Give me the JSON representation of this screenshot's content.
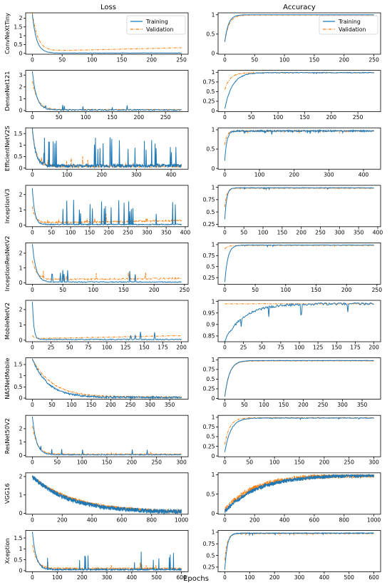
{
  "figure": {
    "col_titles": [
      "Loss",
      "Accuracy"
    ],
    "xlabel": "Epochs"
  },
  "colors": {
    "training": "#1f77b4",
    "validation": "#ff7f0e"
  },
  "legend": {
    "training": "Training",
    "validation": "Validation",
    "location": "top-right",
    "shown_on_row": 0
  },
  "chart_data": [
    {
      "type": "line",
      "model": "ConvNeXtTiny",
      "epochs": 250,
      "loss": {
        "xticks": [
          0,
          50,
          100,
          150,
          200,
          250
        ],
        "yticks": [
          0.0,
          0.5,
          1.0,
          1.5,
          2.0
        ],
        "ylim": [
          -0.05,
          2.3
        ],
        "training": {
          "start": 2.2,
          "floor": 0.02,
          "decay": 7,
          "noise": 0.01,
          "spikes": 0,
          "spike_amp": 0,
          "drift": 0
        },
        "validation": {
          "start": 2.3,
          "floor": 0.12,
          "decay": 9,
          "noise": 0.01,
          "spikes": 0,
          "spike_amp": 0,
          "drift": 0.2
        }
      },
      "accuracy": {
        "xticks": [
          0,
          50,
          100,
          150,
          200,
          250
        ],
        "yticks": [
          0.0,
          0.5,
          1.0
        ],
        "ylim": [
          -0.02,
          1.05
        ],
        "training": {
          "start": 0.3,
          "ceil": 1.0,
          "rise": 6,
          "noise": 0.002,
          "dips": 0,
          "dip_amp": 0
        },
        "validation": {
          "start": 0.3,
          "ceil": 0.99,
          "rise": 7,
          "noise": 0.002,
          "dips": 0,
          "dip_amp": 0
        }
      }
    },
    {
      "type": "line",
      "model": "DenseNet121",
      "epochs": 280,
      "loss": {
        "xticks": [
          0,
          50,
          100,
          150,
          200,
          250
        ],
        "yticks": [
          0,
          1,
          2,
          3
        ],
        "ylim": [
          -0.1,
          3.4
        ],
        "training": {
          "start": 3.3,
          "floor": 0.05,
          "decay": 8,
          "noise": 0.05,
          "spikes": 6,
          "spike_amp": 0.5,
          "drift": 0
        },
        "validation": {
          "start": 2.5,
          "floor": 0.08,
          "decay": 10,
          "noise": 0.03,
          "spikes": 0,
          "spike_amp": 0,
          "drift": 0
        }
      },
      "accuracy": {
        "xticks": [
          0,
          50,
          100,
          150,
          200,
          250
        ],
        "yticks": [
          0.0,
          0.25,
          0.5,
          0.75,
          1.0
        ],
        "ylim": [
          -0.02,
          1.05
        ],
        "training": {
          "start": 0.05,
          "ceil": 0.99,
          "rise": 14,
          "noise": 0.01,
          "dips": 3,
          "dip_amp": 0.03
        },
        "validation": {
          "start": 0.55,
          "ceil": 0.99,
          "rise": 10,
          "noise": 0.01,
          "dips": 0,
          "dip_amp": 0
        }
      }
    },
    {
      "type": "line",
      "model": "EfficientNetV2S",
      "epochs": 430,
      "loss": {
        "xticks": [
          0,
          100,
          200,
          300,
          400
        ],
        "yticks": [
          0.0,
          0.5,
          1.0,
          1.5
        ],
        "ylim": [
          -0.05,
          1.75
        ],
        "training": {
          "start": 1.7,
          "floor": 0.1,
          "decay": 10,
          "noise": 0.08,
          "spikes": 30,
          "spike_amp": 1.2,
          "drift": 0
        },
        "validation": {
          "start": 1.6,
          "floor": 0.08,
          "decay": 12,
          "noise": 0.05,
          "spikes": 10,
          "spike_amp": 0.4,
          "drift": 0
        }
      },
      "accuracy": {
        "xticks": [
          0,
          100,
          200,
          300,
          400
        ],
        "yticks": [
          0.0,
          0.5,
          1.0
        ],
        "ylim": [
          -0.02,
          1.05
        ],
        "training": {
          "start": 0.2,
          "ceil": 0.97,
          "rise": 6,
          "noise": 0.02,
          "dips": 12,
          "dip_amp": 0.08
        },
        "validation": {
          "start": 0.6,
          "ceil": 0.97,
          "rise": 6,
          "noise": 0.015,
          "dips": 8,
          "dip_amp": 0.05
        }
      }
    },
    {
      "type": "line",
      "model": "InceptionV3",
      "epochs": 390,
      "loss": {
        "xticks": [
          0,
          50,
          100,
          150,
          200,
          250,
          300,
          350,
          400
        ],
        "yticks": [
          0,
          1,
          2
        ],
        "ylim": [
          -0.1,
          2.6
        ],
        "training": {
          "start": 2.4,
          "floor": 0.05,
          "decay": 6,
          "noise": 0.03,
          "spikes": 20,
          "spike_amp": 1.6,
          "drift": 0
        },
        "validation": {
          "start": 1.2,
          "floor": 0.15,
          "decay": 8,
          "noise": 0.05,
          "spikes": 10,
          "spike_amp": 0.5,
          "drift": 0.15
        }
      },
      "accuracy": {
        "xticks": [
          0,
          50,
          100,
          150,
          200,
          250,
          300,
          350,
          400
        ],
        "yticks": [
          0.25,
          0.5,
          0.75,
          1.0
        ],
        "ylim": [
          0.2,
          1.04
        ],
        "training": {
          "start": 0.35,
          "ceil": 0.99,
          "rise": 5,
          "noise": 0.005,
          "dips": 5,
          "dip_amp": 0.03
        },
        "validation": {
          "start": 0.6,
          "ceil": 0.98,
          "rise": 5,
          "noise": 0.005,
          "dips": 3,
          "dip_amp": 0.02
        }
      }
    },
    {
      "type": "line",
      "model": "InceptionResNetV2",
      "epochs": 245,
      "loss": {
        "xticks": [
          0,
          50,
          100,
          150,
          200,
          250
        ],
        "yticks": [
          0,
          1,
          2
        ],
        "ylim": [
          -0.1,
          2.7
        ],
        "training": {
          "start": 2.6,
          "floor": 0.05,
          "decay": 6,
          "noise": 0.03,
          "spikes": 8,
          "spike_amp": 1.0,
          "drift": 0
        },
        "validation": {
          "start": 1.5,
          "floor": 0.2,
          "decay": 8,
          "noise": 0.05,
          "spikes": 6,
          "spike_amp": 0.5,
          "drift": 0.1
        }
      },
      "accuracy": {
        "xticks": [
          0,
          50,
          100,
          150,
          200,
          250
        ],
        "yticks": [
          0.25,
          0.5,
          0.75,
          1.0
        ],
        "ylim": [
          0.1,
          1.04
        ],
        "training": {
          "start": 0.15,
          "ceil": 0.99,
          "rise": 5,
          "noise": 0.005,
          "dips": 3,
          "dip_amp": 0.04
        },
        "validation": {
          "start": 0.9,
          "ceil": 0.98,
          "rise": 4,
          "noise": 0.004,
          "dips": 2,
          "dip_amp": 0.02
        }
      }
    },
    {
      "type": "line",
      "model": "MobileNetV2",
      "epochs": 200,
      "loss": {
        "xticks": [
          0,
          25,
          50,
          75,
          100,
          125,
          150,
          175,
          200
        ],
        "yticks": [
          0,
          1,
          2
        ],
        "ylim": [
          -0.1,
          2.6
        ],
        "training": {
          "start": 2.5,
          "floor": 0.05,
          "decay": 2,
          "noise": 0.03,
          "spikes": 4,
          "spike_amp": 0.5,
          "drift": 0
        },
        "validation": {
          "start": 0.3,
          "floor": 0.1,
          "decay": 3,
          "noise": 0.02,
          "spikes": 0,
          "spike_amp": 0,
          "drift": 0.2
        }
      },
      "accuracy": {
        "xticks": [
          0,
          25,
          50,
          75,
          100,
          125,
          150,
          175,
          200
        ],
        "yticks": [
          0.85,
          0.9,
          0.95,
          1.0
        ],
        "ylim": [
          0.825,
          1.005
        ],
        "training": {
          "start": 0.83,
          "ceil": 0.99,
          "rise": 25,
          "noise": 0.005,
          "dips": 5,
          "dip_amp": 0.06
        },
        "validation": {
          "start": 0.99,
          "ceil": 0.99,
          "rise": 1,
          "noise": 0.001,
          "dips": 0,
          "dip_amp": 0
        }
      }
    },
    {
      "type": "line",
      "model": "NASNetMobile",
      "epochs": 380,
      "loss": {
        "xticks": [
          0,
          50,
          100,
          150,
          200,
          250,
          300,
          350,
          400
        ],
        "yticks": [
          0.0,
          0.5,
          1.0,
          1.5
        ],
        "ylim": [
          -0.05,
          1.8
        ],
        "training": {
          "start": 1.75,
          "floor": 0.03,
          "decay": 40,
          "noise": 0.04,
          "spikes": 0,
          "spike_amp": 0,
          "drift": 0
        },
        "validation": {
          "start": 1.75,
          "floor": 0.05,
          "decay": 50,
          "noise": 0.02,
          "spikes": 0,
          "spike_amp": 0,
          "drift": 0
        }
      },
      "accuracy": {
        "xticks": [
          0,
          50,
          100,
          150,
          200,
          250,
          300,
          350,
          400
        ],
        "yticks": [
          0.0,
          0.25,
          0.5,
          0.75,
          1.0
        ],
        "ylim": [
          -0.02,
          1.05
        ],
        "training": {
          "start": 0.05,
          "ceil": 0.98,
          "rise": 12,
          "noise": 0.005,
          "dips": 0,
          "dip_amp": 0
        },
        "validation": {
          "start": 0.05,
          "ceil": 0.97,
          "rise": 12,
          "noise": 0.004,
          "dips": 0,
          "dip_amp": 0
        }
      }
    },
    {
      "type": "line",
      "model": "ResNet50V2",
      "epochs": 300,
      "loss": {
        "xticks": [
          0,
          50,
          100,
          150,
          200,
          250,
          300
        ],
        "yticks": [
          0,
          1,
          2
        ],
        "ylim": [
          -0.1,
          3.0
        ],
        "training": {
          "start": 2.9,
          "floor": 0.05,
          "decay": 8,
          "noise": 0.03,
          "spikes": 6,
          "spike_amp": 0.5,
          "drift": 0
        },
        "validation": {
          "start": 2.2,
          "floor": 0.1,
          "decay": 10,
          "noise": 0.03,
          "spikes": 2,
          "spike_amp": 0.2,
          "drift": 0
        }
      },
      "accuracy": {
        "xticks": [
          0,
          50,
          100,
          150,
          200,
          250,
          300
        ],
        "yticks": [
          0.0,
          0.25,
          0.5,
          0.75,
          1.0
        ],
        "ylim": [
          -0.02,
          1.05
        ],
        "training": {
          "start": 0.1,
          "ceil": 0.98,
          "rise": 12,
          "noise": 0.008,
          "dips": 4,
          "dip_amp": 0.03
        },
        "validation": {
          "start": 0.3,
          "ceil": 0.99,
          "rise": 10,
          "noise": 0.006,
          "dips": 2,
          "dip_amp": 0.02
        }
      }
    },
    {
      "type": "line",
      "model": "VGG16",
      "epochs": 1000,
      "loss": {
        "xticks": [
          0,
          200,
          400,
          600,
          800,
          1000
        ],
        "yticks": [
          0,
          1,
          2
        ],
        "ylim": [
          -0.05,
          2.2
        ],
        "training": {
          "start": 2.0,
          "floor": 0.05,
          "decay": 250,
          "noise": 0.12,
          "spikes": 0,
          "spike_amp": 0,
          "drift": 0
        },
        "validation": {
          "start": 2.0,
          "floor": 0.05,
          "decay": 280,
          "noise": 0.08,
          "spikes": 0,
          "spike_amp": 0,
          "drift": 0
        }
      },
      "accuracy": {
        "xticks": [
          0,
          200,
          400,
          600,
          800,
          1000
        ],
        "yticks": [
          0.0,
          0.5,
          1.0
        ],
        "ylim": [
          -0.02,
          1.05
        ],
        "training": {
          "start": 0.05,
          "ceil": 0.99,
          "rise": 220,
          "noise": 0.05,
          "dips": 0,
          "dip_amp": 0
        },
        "validation": {
          "start": 0.1,
          "ceil": 0.99,
          "rise": 200,
          "noise": 0.06,
          "dips": 0,
          "dip_amp": 0
        }
      }
    },
    {
      "type": "line",
      "model": "Xception",
      "epochs": 600,
      "loss": {
        "xticks": [
          0,
          100,
          200,
          300,
          400,
          500,
          600
        ],
        "yticks": [
          0.0,
          0.5,
          1.0,
          1.5
        ],
        "ylim": [
          -0.05,
          1.85
        ],
        "training": {
          "start": 1.8,
          "floor": 0.05,
          "decay": 15,
          "noise": 0.03,
          "spikes": 14,
          "spike_amp": 0.8,
          "drift": 0
        },
        "validation": {
          "start": 1.2,
          "floor": 0.1,
          "decay": 18,
          "noise": 0.03,
          "spikes": 6,
          "spike_amp": 0.3,
          "drift": 0
        }
      },
      "accuracy": {
        "xticks": [
          0,
          100,
          200,
          300,
          400,
          500,
          600
        ],
        "yticks": [
          0.25,
          0.5,
          0.75,
          1.0
        ],
        "ylim": [
          0.15,
          1.04
        ],
        "training": {
          "start": 0.2,
          "ceil": 0.98,
          "rise": 10,
          "noise": 0.006,
          "dips": 8,
          "dip_amp": 0.05
        },
        "validation": {
          "start": 0.4,
          "ceil": 0.97,
          "rise": 10,
          "noise": 0.005,
          "dips": 5,
          "dip_amp": 0.04
        }
      }
    }
  ]
}
